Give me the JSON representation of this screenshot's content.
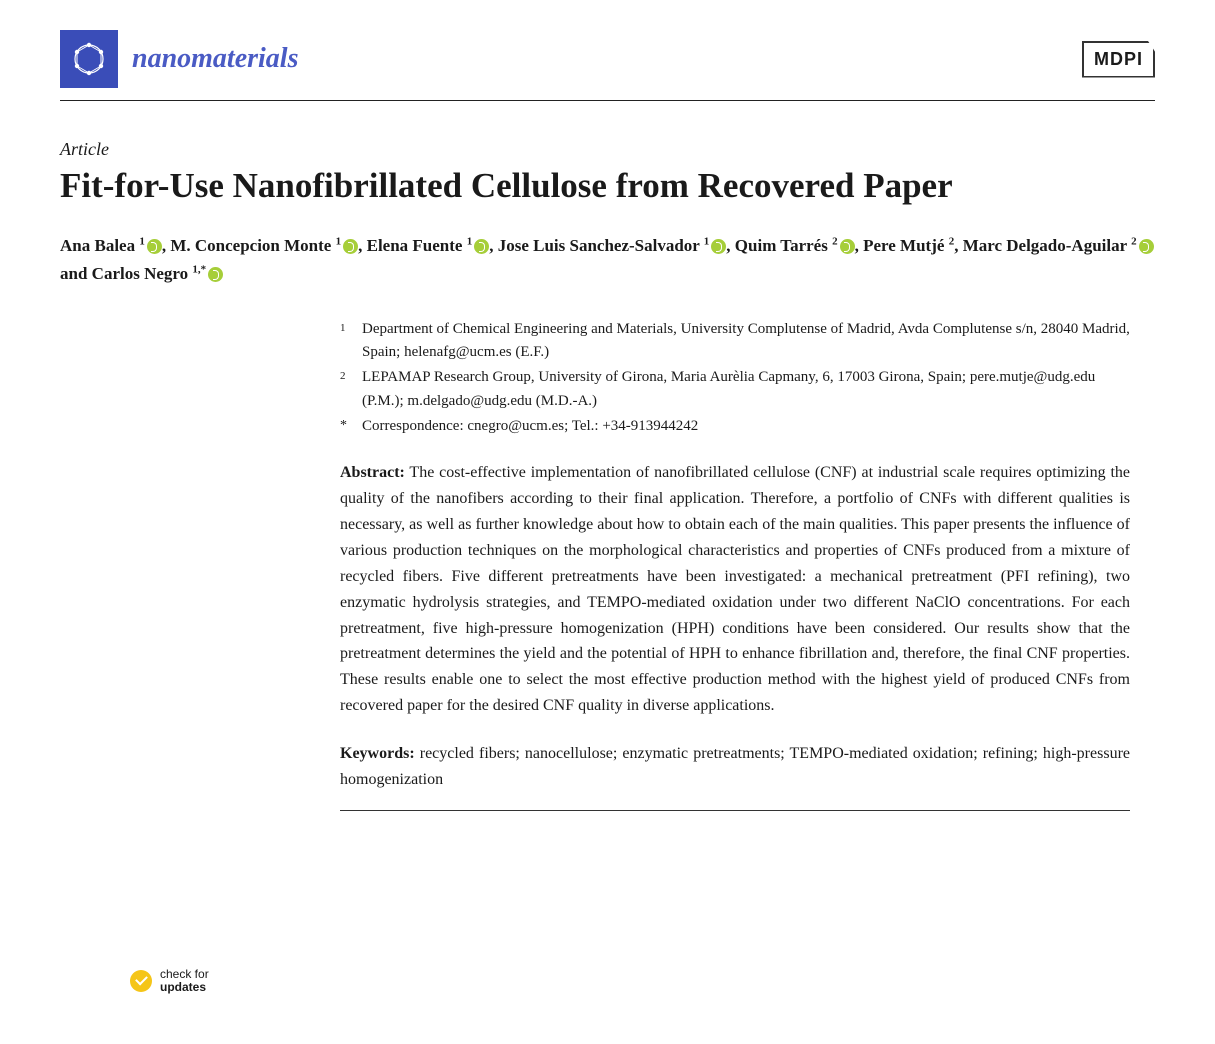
{
  "journal": {
    "name": "nanomaterials",
    "logo_bg": "#3a4db8",
    "name_color": "#4a5bc4"
  },
  "publisher": {
    "label": "MDPI"
  },
  "article_type": "Article",
  "title": "Fit-for-Use Nanofibrillated Cellulose from Recovered Paper",
  "authors": [
    {
      "name": "Ana Balea",
      "sup": "1",
      "orcid": true,
      "sep": ", "
    },
    {
      "name": "M. Concepcion Monte",
      "sup": "1",
      "orcid": true,
      "sep": ", "
    },
    {
      "name": "Elena Fuente",
      "sup": "1",
      "orcid": true,
      "sep": ", "
    },
    {
      "name": "Jose Luis Sanchez-Salvador",
      "sup": "1",
      "orcid": true,
      "sep": ", "
    },
    {
      "name": "Quim Tarrés",
      "sup": "2",
      "orcid": true,
      "sep": ", "
    },
    {
      "name": "Pere Mutjé",
      "sup": "2",
      "orcid": false,
      "sep": ", "
    },
    {
      "name": "Marc Delgado-Aguilar",
      "sup": "2",
      "orcid": true,
      "sep": " and "
    },
    {
      "name": "Carlos Negro",
      "sup": "1,*",
      "orcid": true,
      "sep": ""
    }
  ],
  "affiliations": [
    {
      "mark": "1",
      "text": "Department of Chemical Engineering and Materials, University Complutense of Madrid, Avda Complutense s/n, 28040 Madrid, Spain; helenafg@ucm.es (E.F.)"
    },
    {
      "mark": "2",
      "text": "LEPAMAP Research Group, University of Girona, Maria Aurèlia Capmany, 6, 17003 Girona, Spain; pere.mutje@udg.edu (P.M.); m.delgado@udg.edu (M.D.-A.)"
    },
    {
      "mark": "*",
      "text": "Correspondence: cnegro@ucm.es; Tel.: +34-913944242"
    }
  ],
  "abstract_label": "Abstract:",
  "abstract": "The cost-effective implementation of nanofibrillated cellulose (CNF) at industrial scale requires optimizing the quality of the nanofibers according to their final application. Therefore, a portfolio of CNFs with different qualities is necessary, as well as further knowledge about how to obtain each of the main qualities. This paper presents the influence of various production techniques on the morphological characteristics and properties of CNFs produced from a mixture of recycled fibers. Five different pretreatments have been investigated: a mechanical pretreatment (PFI refining), two enzymatic hydrolysis strategies, and TEMPO-mediated oxidation under two different NaClO concentrations. For each pretreatment, five high-pressure homogenization (HPH) conditions have been considered. Our results show that the pretreatment determines the yield and the potential of HPH to enhance fibrillation and, therefore, the final CNF properties. These results enable one to select the most effective production method with the highest yield of produced CNFs from recovered paper for the desired CNF quality in diverse applications.",
  "keywords_label": "Keywords:",
  "keywords": "recycled fibers; nanocellulose; enzymatic pretreatments; TEMPO-mediated oxidation; refining; high-pressure homogenization",
  "check_updates": {
    "line1": "check for",
    "line2": "updates"
  },
  "style": {
    "title_fontsize": 35,
    "body_fontsize": 16,
    "orcid_color": "#a6ce39",
    "check_color": "#f5c518",
    "text_color": "#1a1a1a",
    "background_color": "#ffffff"
  }
}
